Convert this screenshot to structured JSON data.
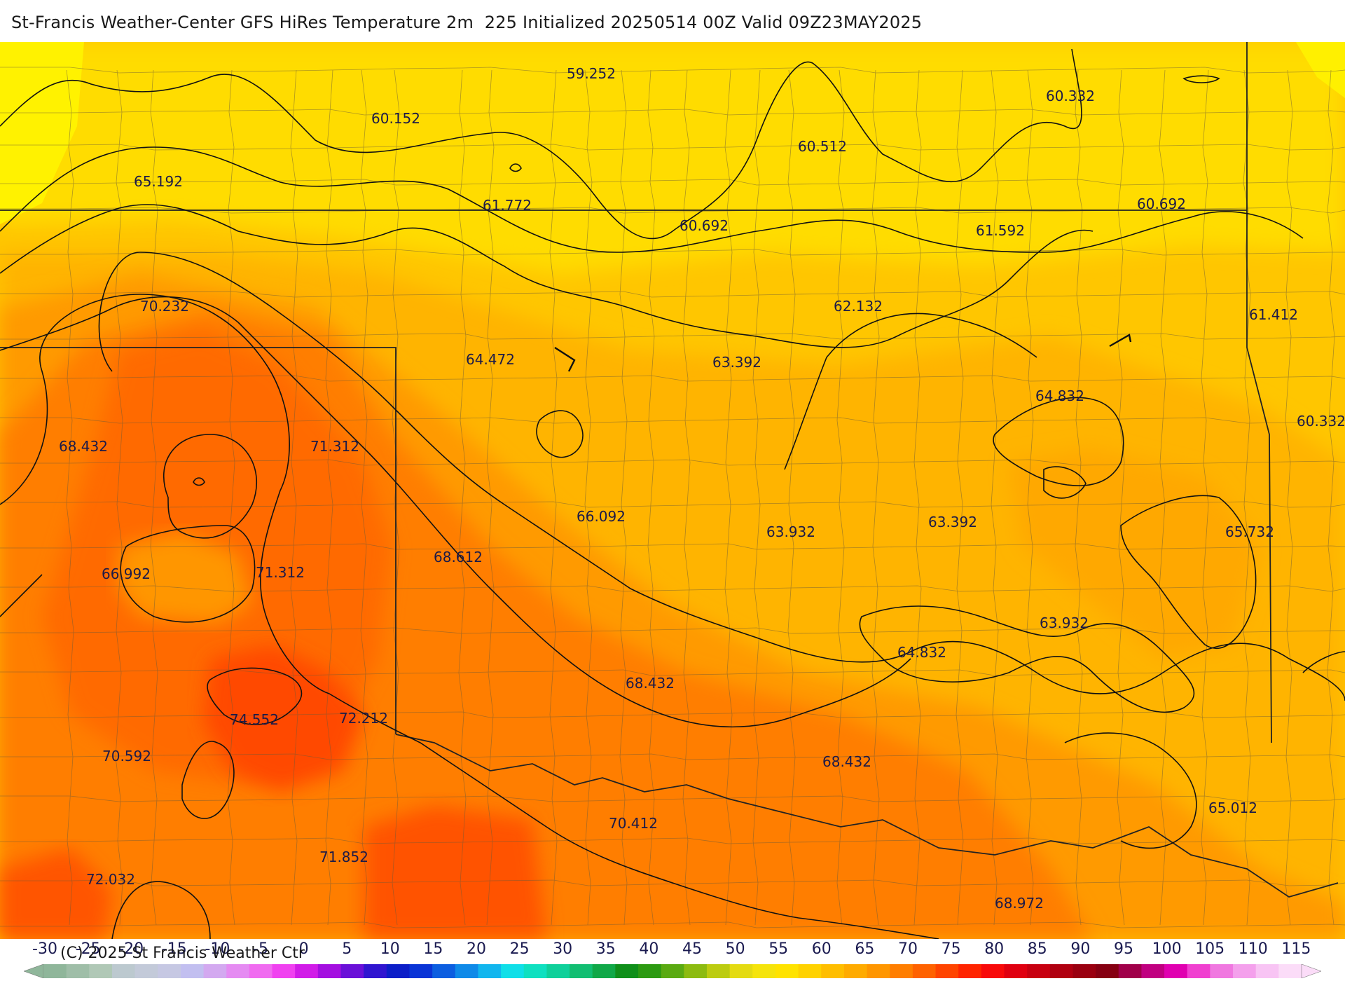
{
  "header": {
    "title": "St-Francis Weather-Center GFS HiRes Temperature 2m  225 Initialized 20250514 00Z Valid 09Z23MAY2025"
  },
  "map": {
    "labels": [
      {
        "text": "59.252"
      },
      {
        "text": "60.152"
      },
      {
        "text": "60.332"
      },
      {
        "text": "60.512"
      },
      {
        "text": "65.192"
      },
      {
        "text": "61.772"
      },
      {
        "text": "60.692"
      },
      {
        "text": "61.592"
      },
      {
        "text": "60.692"
      },
      {
        "text": "70.232"
      },
      {
        "text": "62.132"
      },
      {
        "text": "61.412"
      },
      {
        "text": "64.472"
      },
      {
        "text": "63.392"
      },
      {
        "text": "64.832"
      },
      {
        "text": "60.332"
      },
      {
        "text": "68.432"
      },
      {
        "text": "71.312"
      },
      {
        "text": "66.092"
      },
      {
        "text": "63.932"
      },
      {
        "text": "63.392"
      },
      {
        "text": "65.732"
      },
      {
        "text": "68.612"
      },
      {
        "text": "66.992"
      },
      {
        "text": "71.312"
      },
      {
        "text": "63.932"
      },
      {
        "text": "64.832"
      },
      {
        "text": "68.432"
      },
      {
        "text": "74.552"
      },
      {
        "text": "72.212"
      },
      {
        "text": "70.592"
      },
      {
        "text": "68.432"
      },
      {
        "text": "65.012"
      },
      {
        "text": "70.412"
      },
      {
        "text": "71.852"
      },
      {
        "text": "72.032"
      },
      {
        "text": "68.972"
      }
    ]
  },
  "legend": {
    "ticks": [
      "-30",
      "-25",
      "-20",
      "-15",
      "-10",
      "-5",
      "0",
      "5",
      "10",
      "15",
      "20",
      "25",
      "30",
      "35",
      "40",
      "45",
      "50",
      "55",
      "60",
      "65",
      "70",
      "75",
      "80",
      "85",
      "90",
      "95",
      "100",
      "105",
      "110",
      "115"
    ],
    "colors": [
      "#8fb69a",
      "#9fbea8",
      "#b0c8b6",
      "#bcc9cf",
      "#c3cad9",
      "#c6c8e3",
      "#c2bff0",
      "#d3a9f0",
      "#e58bf2",
      "#f06bf0",
      "#f041f0",
      "#d11ce8",
      "#a40fe0",
      "#6a10d8",
      "#3015d0",
      "#0c1ec8",
      "#0a34d6",
      "#0c5ee0",
      "#0f8ae8",
      "#12b6ee",
      "#10dfe8",
      "#0fe0c0",
      "#0fd09a",
      "#12be72",
      "#10a848",
      "#0f8f1a",
      "#2c9a12",
      "#5aaa12",
      "#8cbb10",
      "#bccc10",
      "#e4db12",
      "#f5e40c",
      "#ffe300",
      "#ffd200",
      "#ffbe00",
      "#ffab00",
      "#ff9600",
      "#ff7e00",
      "#ff6200",
      "#ff4400",
      "#ff2400",
      "#f80a0a",
      "#e00010",
      "#c80010",
      "#b00010",
      "#9a0010",
      "#860012",
      "#a0004a",
      "#c00080",
      "#e000b0",
      "#f040d0",
      "#f078e0",
      "#f4a0ec",
      "#f8c4f4",
      "#fbdcf8"
    ],
    "copyright": "(C) 2025 St Francis Weather Ctr"
  },
  "colors": {
    "title_text": "#1a1a1a",
    "contour": "#111111",
    "county_line": "#6b5a3a",
    "state_line": "#222222"
  }
}
